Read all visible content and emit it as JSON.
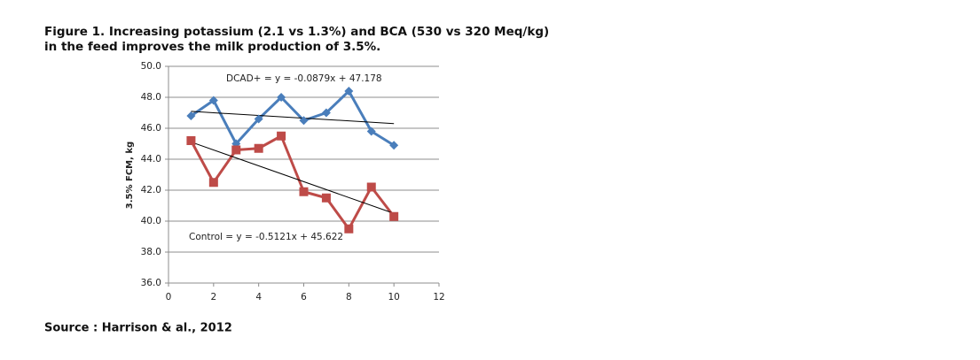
{
  "chart_data": {
    "type": "line",
    "title": [
      "Figure 1. Increasing potassium (2.1 vs 1.3%) and BCA (530 vs 320 Meq/kg)",
      "in the feed improves the milk production of 3.5%."
    ],
    "y_label": "3.5% FCM, kg",
    "source": "Source : Harrison & al., 2012",
    "x": [
      1,
      2,
      3,
      4,
      5,
      6,
      7,
      8,
      9,
      10
    ],
    "series": [
      {
        "name": "DCAD+",
        "color": "#4a7ebb",
        "marker": "diamond",
        "values": [
          46.8,
          47.8,
          45.0,
          46.6,
          48.0,
          46.5,
          47.0,
          48.4,
          45.8,
          44.9
        ]
      },
      {
        "name": "Control",
        "color": "#be4b48",
        "marker": "square",
        "values": [
          45.2,
          42.5,
          44.6,
          44.7,
          45.5,
          41.9,
          41.5,
          39.5,
          42.2,
          40.3
        ]
      }
    ],
    "trendlines": [
      {
        "x": [
          1,
          10
        ],
        "values": [
          47.09,
          46.3
        ],
        "color": "#000000"
      },
      {
        "x": [
          1,
          10
        ],
        "values": [
          45.11,
          40.5
        ],
        "color": "#000000"
      }
    ],
    "annotations": [
      "DCAD+ = y = -0.0879x + 47.178",
      "Control = y = -0.5121x + 45.622"
    ],
    "xlim": [
      0,
      12
    ],
    "xticks": [
      0,
      2,
      4,
      6,
      8,
      10,
      12
    ],
    "ylim": [
      36,
      50
    ],
    "yticks": [
      {
        "value": 36,
        "label": "36.0"
      },
      {
        "value": 38,
        "label": "38.0"
      },
      {
        "value": 40,
        "label": "40.0"
      },
      {
        "value": 42,
        "label": "42.0"
      },
      {
        "value": 44,
        "label": "44.0"
      },
      {
        "value": 46,
        "label": "46.0"
      },
      {
        "value": 48,
        "label": "48.0"
      },
      {
        "value": 50,
        "label": "50.0"
      }
    ],
    "grid": true
  }
}
